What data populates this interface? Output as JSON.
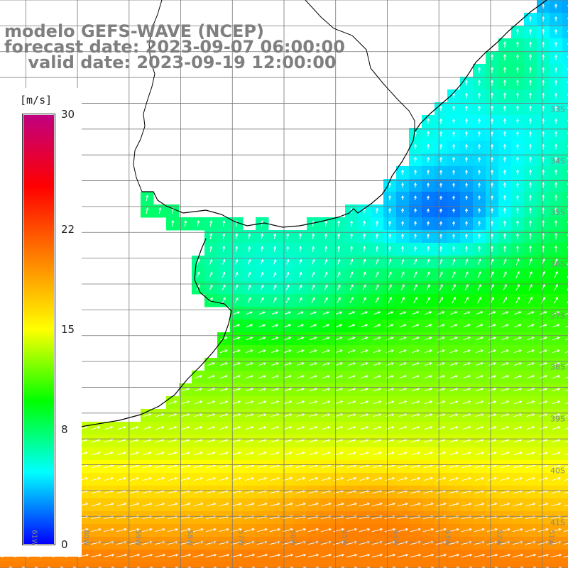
{
  "title": {
    "line1": "modelo GEFS-WAVE (NCEP)",
    "line2": "forecast date: 2023-09-07 06:00:00",
    "line3": "    valid date: 2023-09-19 12:00:00"
  },
  "colorbar": {
    "unit": "[m/s]",
    "min": 0,
    "max": 30,
    "ticks": [
      "30",
      "22",
      "15",
      "8",
      "0"
    ],
    "tick_values": [
      30,
      22,
      15,
      8,
      0
    ],
    "colors": [
      "#0000ff",
      "#00ffff",
      "#00ff00",
      "#ffff00",
      "#ff8000",
      "#ff0000",
      "#c00080"
    ]
  },
  "lat_labels": [
    "33S",
    "34S",
    "35S",
    "36S",
    "37S",
    "38S",
    "39S",
    "40S",
    "41S"
  ],
  "lat_values": [
    33,
    34,
    35,
    36,
    37,
    38,
    39,
    40,
    41
  ],
  "lon_labels": [
    "61W",
    "60W",
    "59W",
    "58W",
    "57W",
    "56W",
    "55W",
    "54W",
    "53W",
    "52W",
    "51W"
  ],
  "lon_values": [
    61,
    60,
    59,
    58,
    57,
    56,
    55,
    54,
    53,
    52,
    51
  ],
  "map": {
    "quantity": "wind speed",
    "lon_range": [
      -61.5,
      -50.5
    ],
    "lat_range": [
      -41.5,
      -30.5
    ],
    "grid": true,
    "arrow_color": "#ffffff",
    "coast_color": "#000000",
    "land_color": "#ffffff"
  }
}
